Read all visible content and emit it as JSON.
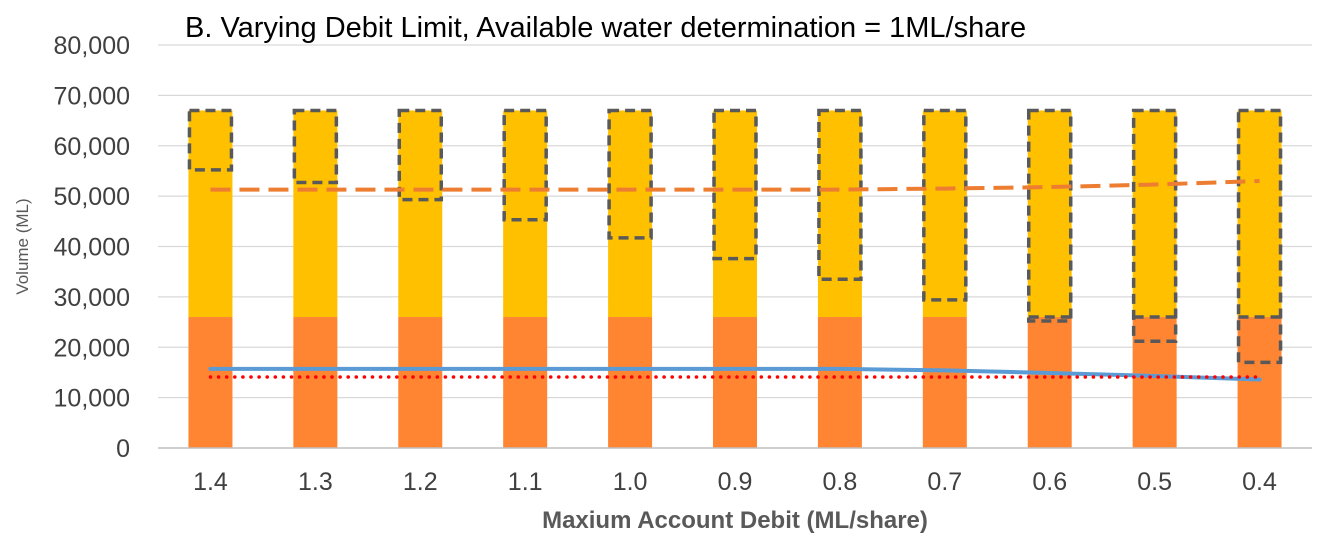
{
  "chart_data": {
    "type": "bar",
    "title": "B. Varying Debit Limit, Available water determination = 1ML/share",
    "xlabel": "Maxium Account Debit (ML/share)",
    "ylabel": "Volume (ML)",
    "ylim": [
      0,
      80000
    ],
    "yticks": [
      0,
      10000,
      20000,
      30000,
      40000,
      50000,
      60000,
      70000,
      80000
    ],
    "ytick_labels": [
      "0",
      "10,000",
      "20,000",
      "30,000",
      "40,000",
      "50,000",
      "60,000",
      "70,000",
      "80,000"
    ],
    "categories": [
      "1.4",
      "1.3",
      "1.2",
      "1.1",
      "1.0",
      "0.9",
      "0.8",
      "0.7",
      "0.6",
      "0.5",
      "0.4"
    ],
    "grid": true,
    "legend": "none",
    "bar_series": [
      {
        "color": "#FF8533",
        "values": [
          26000,
          26000,
          26000,
          26000,
          26000,
          26000,
          26000,
          26000,
          26000,
          26000,
          26000
        ]
      },
      {
        "color": "#FFC000",
        "values": [
          41000,
          41000,
          41000,
          41000,
          41000,
          41000,
          41000,
          41000,
          41000,
          41000,
          41000
        ]
      }
    ],
    "dashed_boxes": {
      "stroke": "#595959",
      "top": [
        67000,
        67000,
        67000,
        67000,
        67000,
        67000,
        67000,
        67000,
        67000,
        67000,
        67000
      ],
      "bottom": [
        55200,
        52700,
        49300,
        45300,
        41700,
        37600,
        33500,
        29400,
        25200,
        21200,
        17000
      ],
      "inner_line": [
        null,
        null,
        null,
        null,
        null,
        null,
        null,
        null,
        26000,
        26000,
        26000
      ]
    },
    "line_series": [
      {
        "style": "dashed",
        "color": "#ED7D31",
        "values": [
          51300,
          51300,
          51300,
          51300,
          51300,
          51300,
          51300,
          51500,
          51800,
          52300,
          53000
        ]
      },
      {
        "style": "solid",
        "color": "#5B9BD5",
        "values": [
          15700,
          15700,
          15700,
          15700,
          15700,
          15700,
          15700,
          15400,
          14900,
          14300,
          13600
        ]
      },
      {
        "style": "dotted",
        "color": "#FF0000",
        "values": [
          14100,
          14100,
          14100,
          14100,
          14100,
          14100,
          14100,
          14100,
          14100,
          14100,
          14100
        ]
      }
    ]
  }
}
